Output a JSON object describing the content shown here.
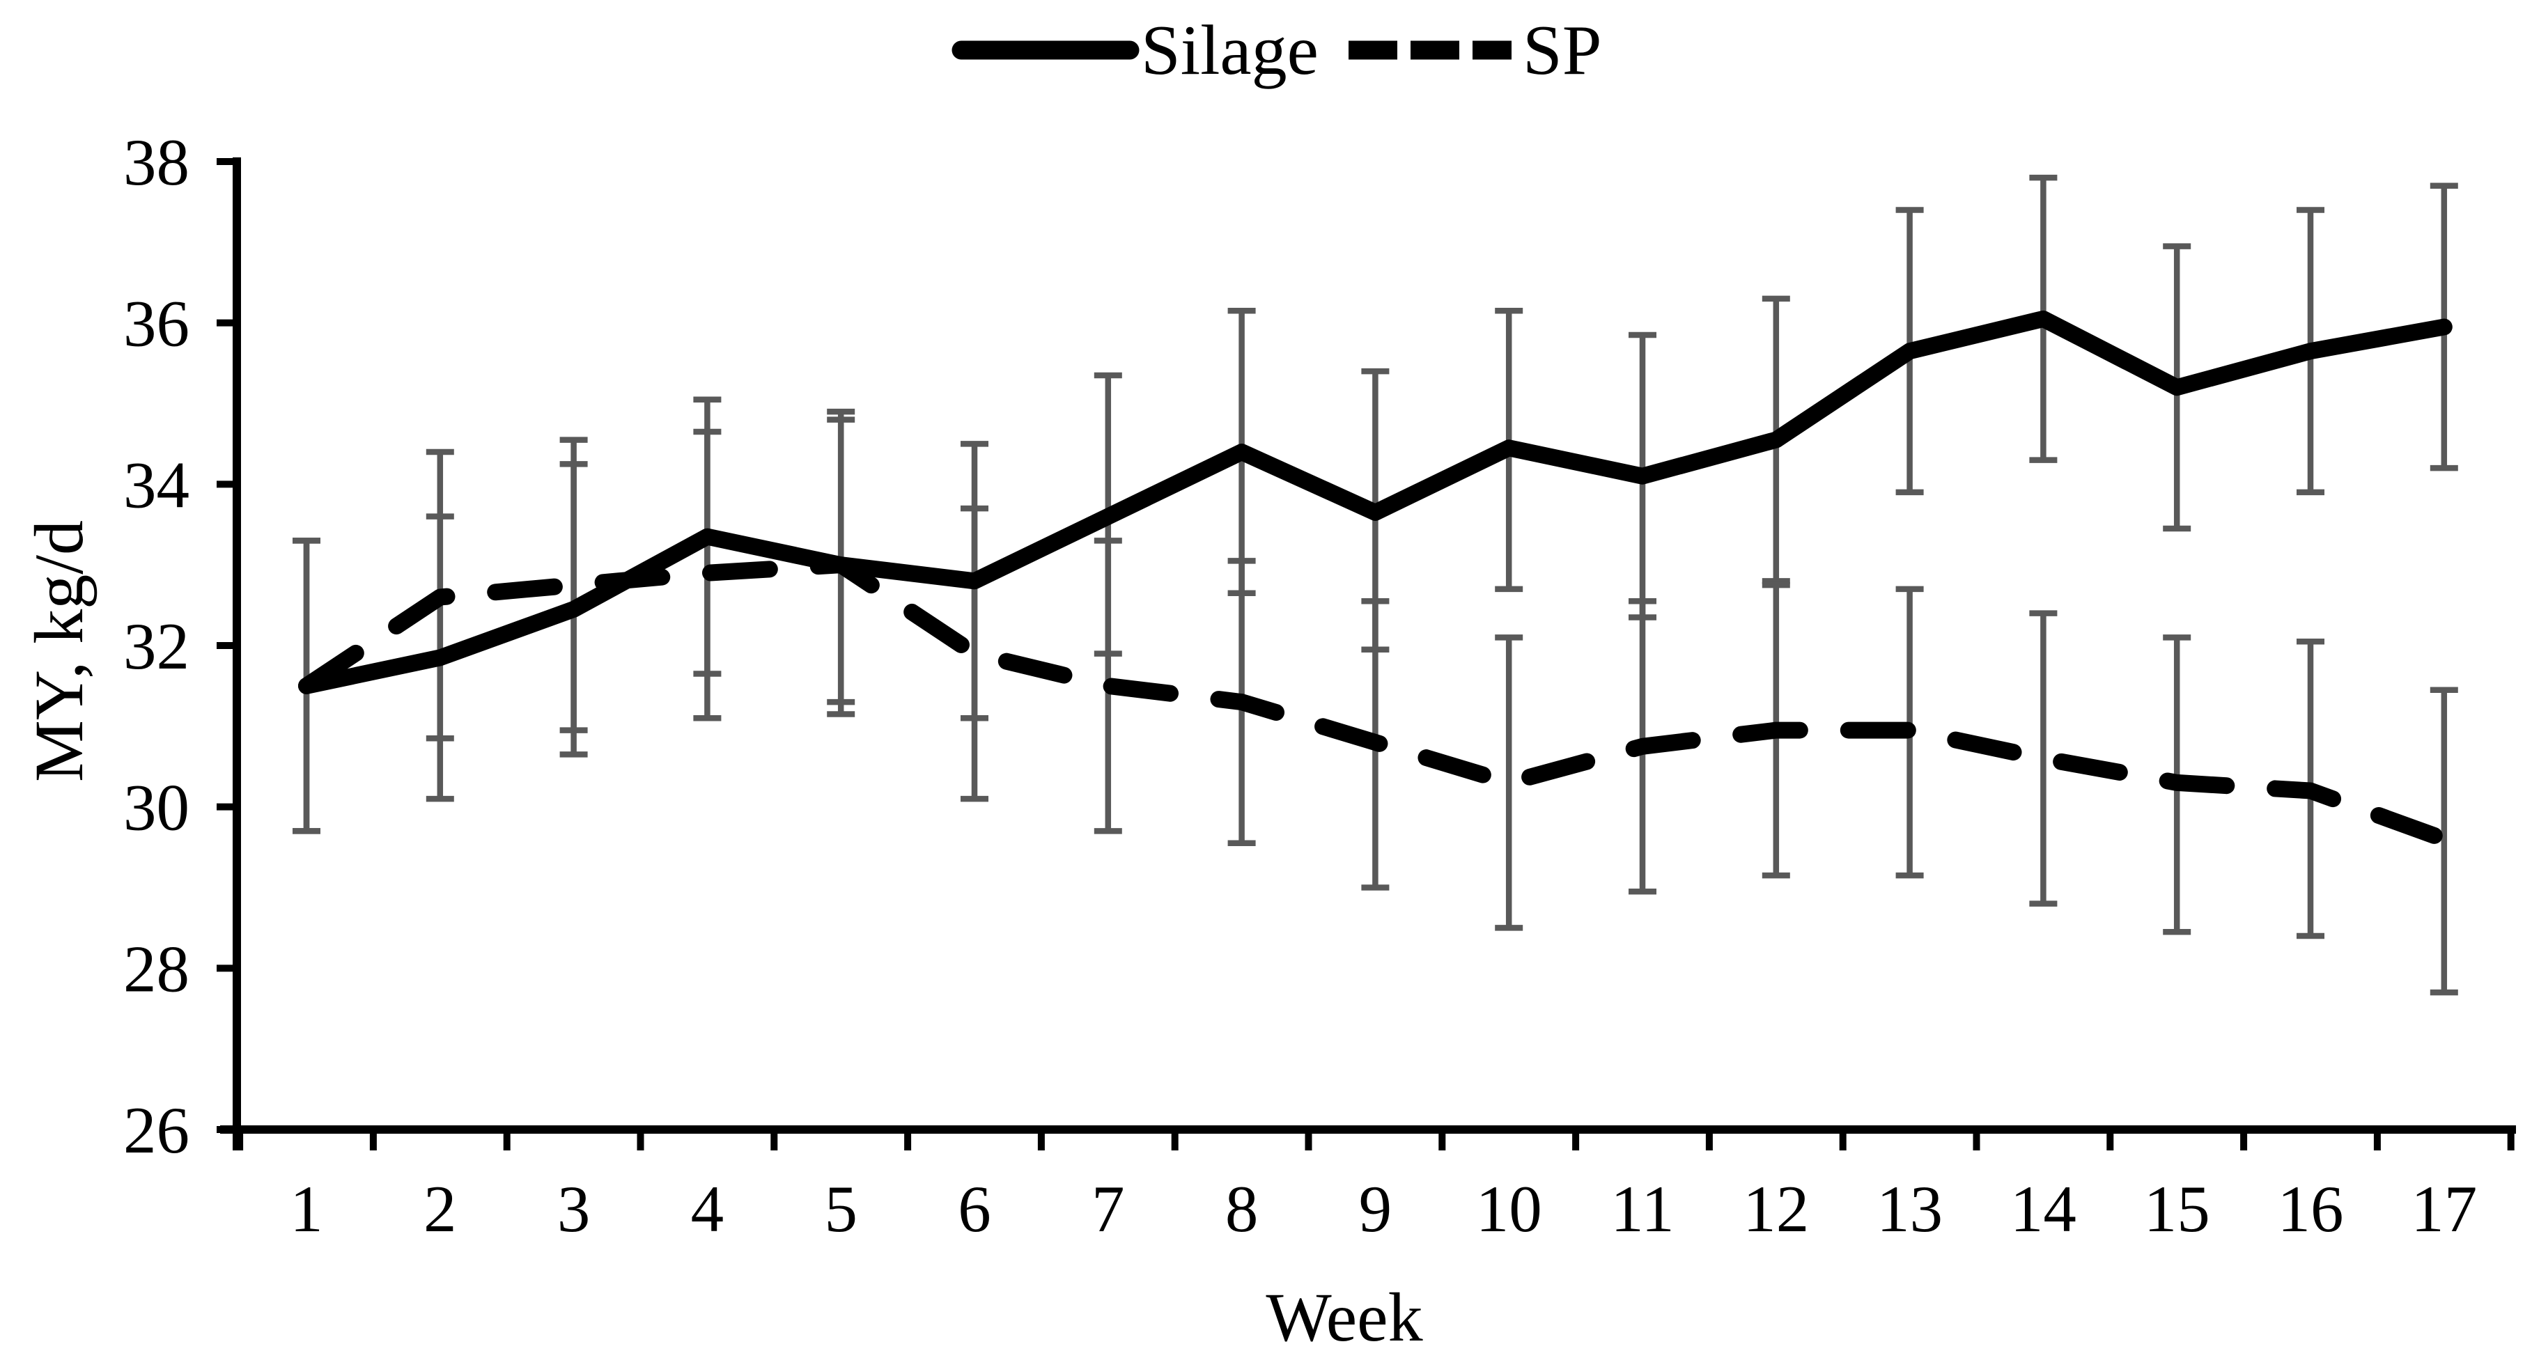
{
  "figure": {
    "background": "#ffffff",
    "line_color": "#000000",
    "error_bar_color": "#595959"
  },
  "legend": {
    "position": "top-center",
    "items": [
      {
        "label": "Silage",
        "swatch": "solid-line"
      },
      {
        "label": "SP",
        "swatch": "dashed-line"
      }
    ]
  },
  "chart_data": {
    "type": "line",
    "title": "",
    "xlabel": "Week",
    "ylabel": "MY, kg/d",
    "x_categories": [
      1,
      2,
      3,
      4,
      5,
      6,
      7,
      8,
      9,
      10,
      11,
      12,
      13,
      14,
      15,
      16,
      17
    ],
    "ylim": [
      26,
      38
    ],
    "yticks": [
      26,
      28,
      30,
      32,
      34,
      36,
      38
    ],
    "grid": false,
    "legend_position": "top-center",
    "error_bars": true,
    "series": [
      {
        "name": "Silage",
        "line_style": "solid",
        "color": "#000000",
        "values": [
          31.5,
          31.85,
          32.45,
          33.35,
          33.0,
          32.8,
          33.6,
          34.4,
          33.65,
          34.45,
          34.1,
          34.55,
          35.65,
          36.05,
          35.2,
          35.65,
          35.95
        ],
        "error_upper": [
          33.3,
          33.6,
          34.25,
          35.05,
          34.8,
          34.5,
          35.35,
          36.15,
          35.4,
          36.15,
          35.85,
          36.3,
          37.4,
          37.8,
          36.95,
          37.4,
          37.7
        ],
        "error_lower": [
          29.7,
          30.1,
          30.65,
          31.65,
          31.3,
          31.1,
          31.9,
          32.65,
          31.95,
          32.7,
          32.35,
          32.8,
          33.9,
          34.3,
          33.45,
          33.9,
          34.2
        ]
      },
      {
        "name": "SP",
        "line_style": "dashed",
        "color": "#000000",
        "values": [
          31.5,
          32.6,
          32.75,
          32.9,
          33.0,
          31.9,
          31.5,
          31.3,
          30.8,
          30.3,
          30.75,
          30.95,
          30.95,
          30.6,
          30.3,
          30.2,
          29.6
        ],
        "error_upper": [
          33.3,
          34.4,
          34.55,
          34.65,
          34.9,
          33.7,
          33.3,
          33.05,
          32.55,
          32.1,
          32.55,
          32.75,
          32.7,
          32.4,
          32.1,
          32.05,
          31.45
        ],
        "error_lower": [
          29.7,
          30.85,
          30.95,
          31.1,
          31.15,
          30.1,
          29.7,
          29.55,
          29.0,
          28.5,
          28.95,
          29.15,
          29.15,
          28.8,
          28.45,
          28.4,
          27.7
        ]
      }
    ]
  }
}
